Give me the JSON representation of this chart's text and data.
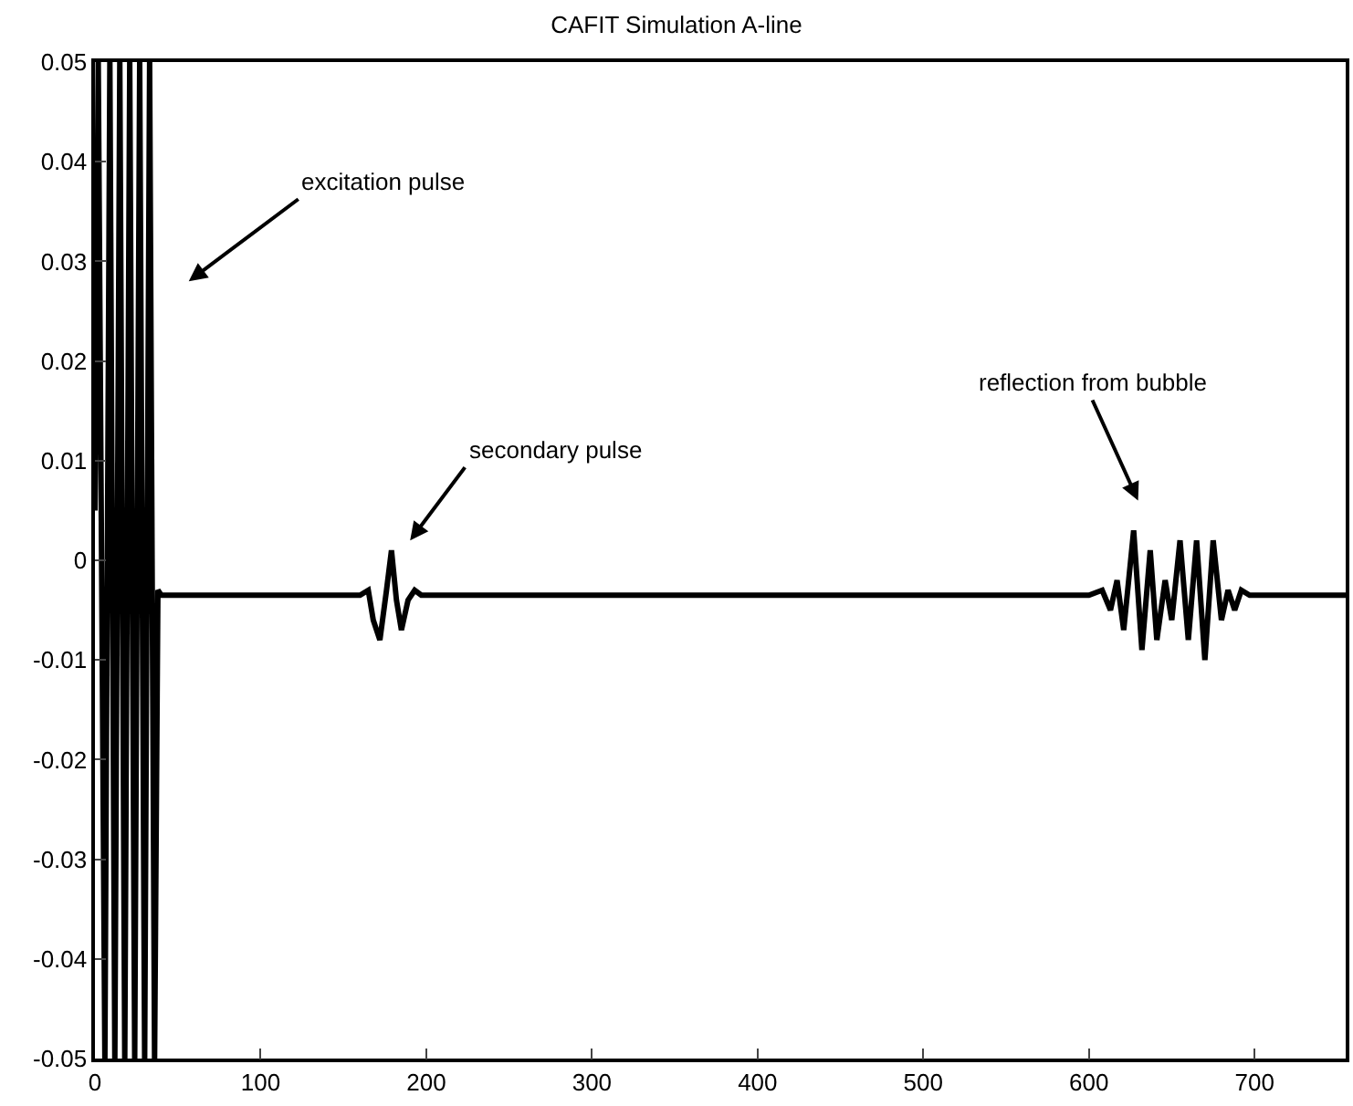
{
  "chart_data": {
    "type": "line",
    "title": "CAFIT Simulation A-line",
    "xlim": [
      0,
      755
    ],
    "xticks": [
      0,
      100,
      200,
      300,
      400,
      500,
      600,
      700
    ],
    "ylim": [
      -0.05,
      0.05
    ],
    "yticks": [
      -0.05,
      -0.04,
      -0.03,
      -0.02,
      -0.01,
      0,
      0.01,
      0.02,
      0.03,
      0.04,
      0.05
    ],
    "grid": false,
    "marker": "none",
    "line_style": "solid",
    "series": [
      {
        "color": "#000000",
        "x": [
          0,
          2,
          6,
          9,
          12,
          15,
          18,
          21,
          24,
          27,
          30,
          33,
          36,
          38,
          40,
          160,
          165,
          168,
          172,
          176,
          179,
          182,
          185,
          189,
          193,
          197,
          600,
          608,
          613,
          617,
          621,
          627,
          632,
          637,
          641,
          646,
          650,
          655,
          660,
          665,
          670,
          675,
          680,
          684,
          688,
          692,
          697,
          755
        ],
        "values": [
          0.005,
          0.05,
          -0.05,
          0.05,
          -0.05,
          0.05,
          -0.05,
          0.05,
          -0.05,
          0.05,
          -0.05,
          0.05,
          -0.05,
          -0.003,
          -0.0035,
          -0.0035,
          -0.003,
          -0.006,
          -0.008,
          -0.003,
          0.001,
          -0.004,
          -0.007,
          -0.004,
          -0.003,
          -0.0035,
          -0.0035,
          -0.003,
          -0.005,
          -0.002,
          -0.007,
          0.003,
          -0.009,
          0.001,
          -0.008,
          -0.002,
          -0.006,
          0.002,
          -0.008,
          0.002,
          -0.01,
          0.002,
          -0.006,
          -0.003,
          -0.005,
          -0.003,
          -0.0035,
          -0.0035
        ]
      }
    ],
    "annotations": [
      "excitation pulse",
      "secondary pulse",
      "reflection from bubble"
    ]
  }
}
